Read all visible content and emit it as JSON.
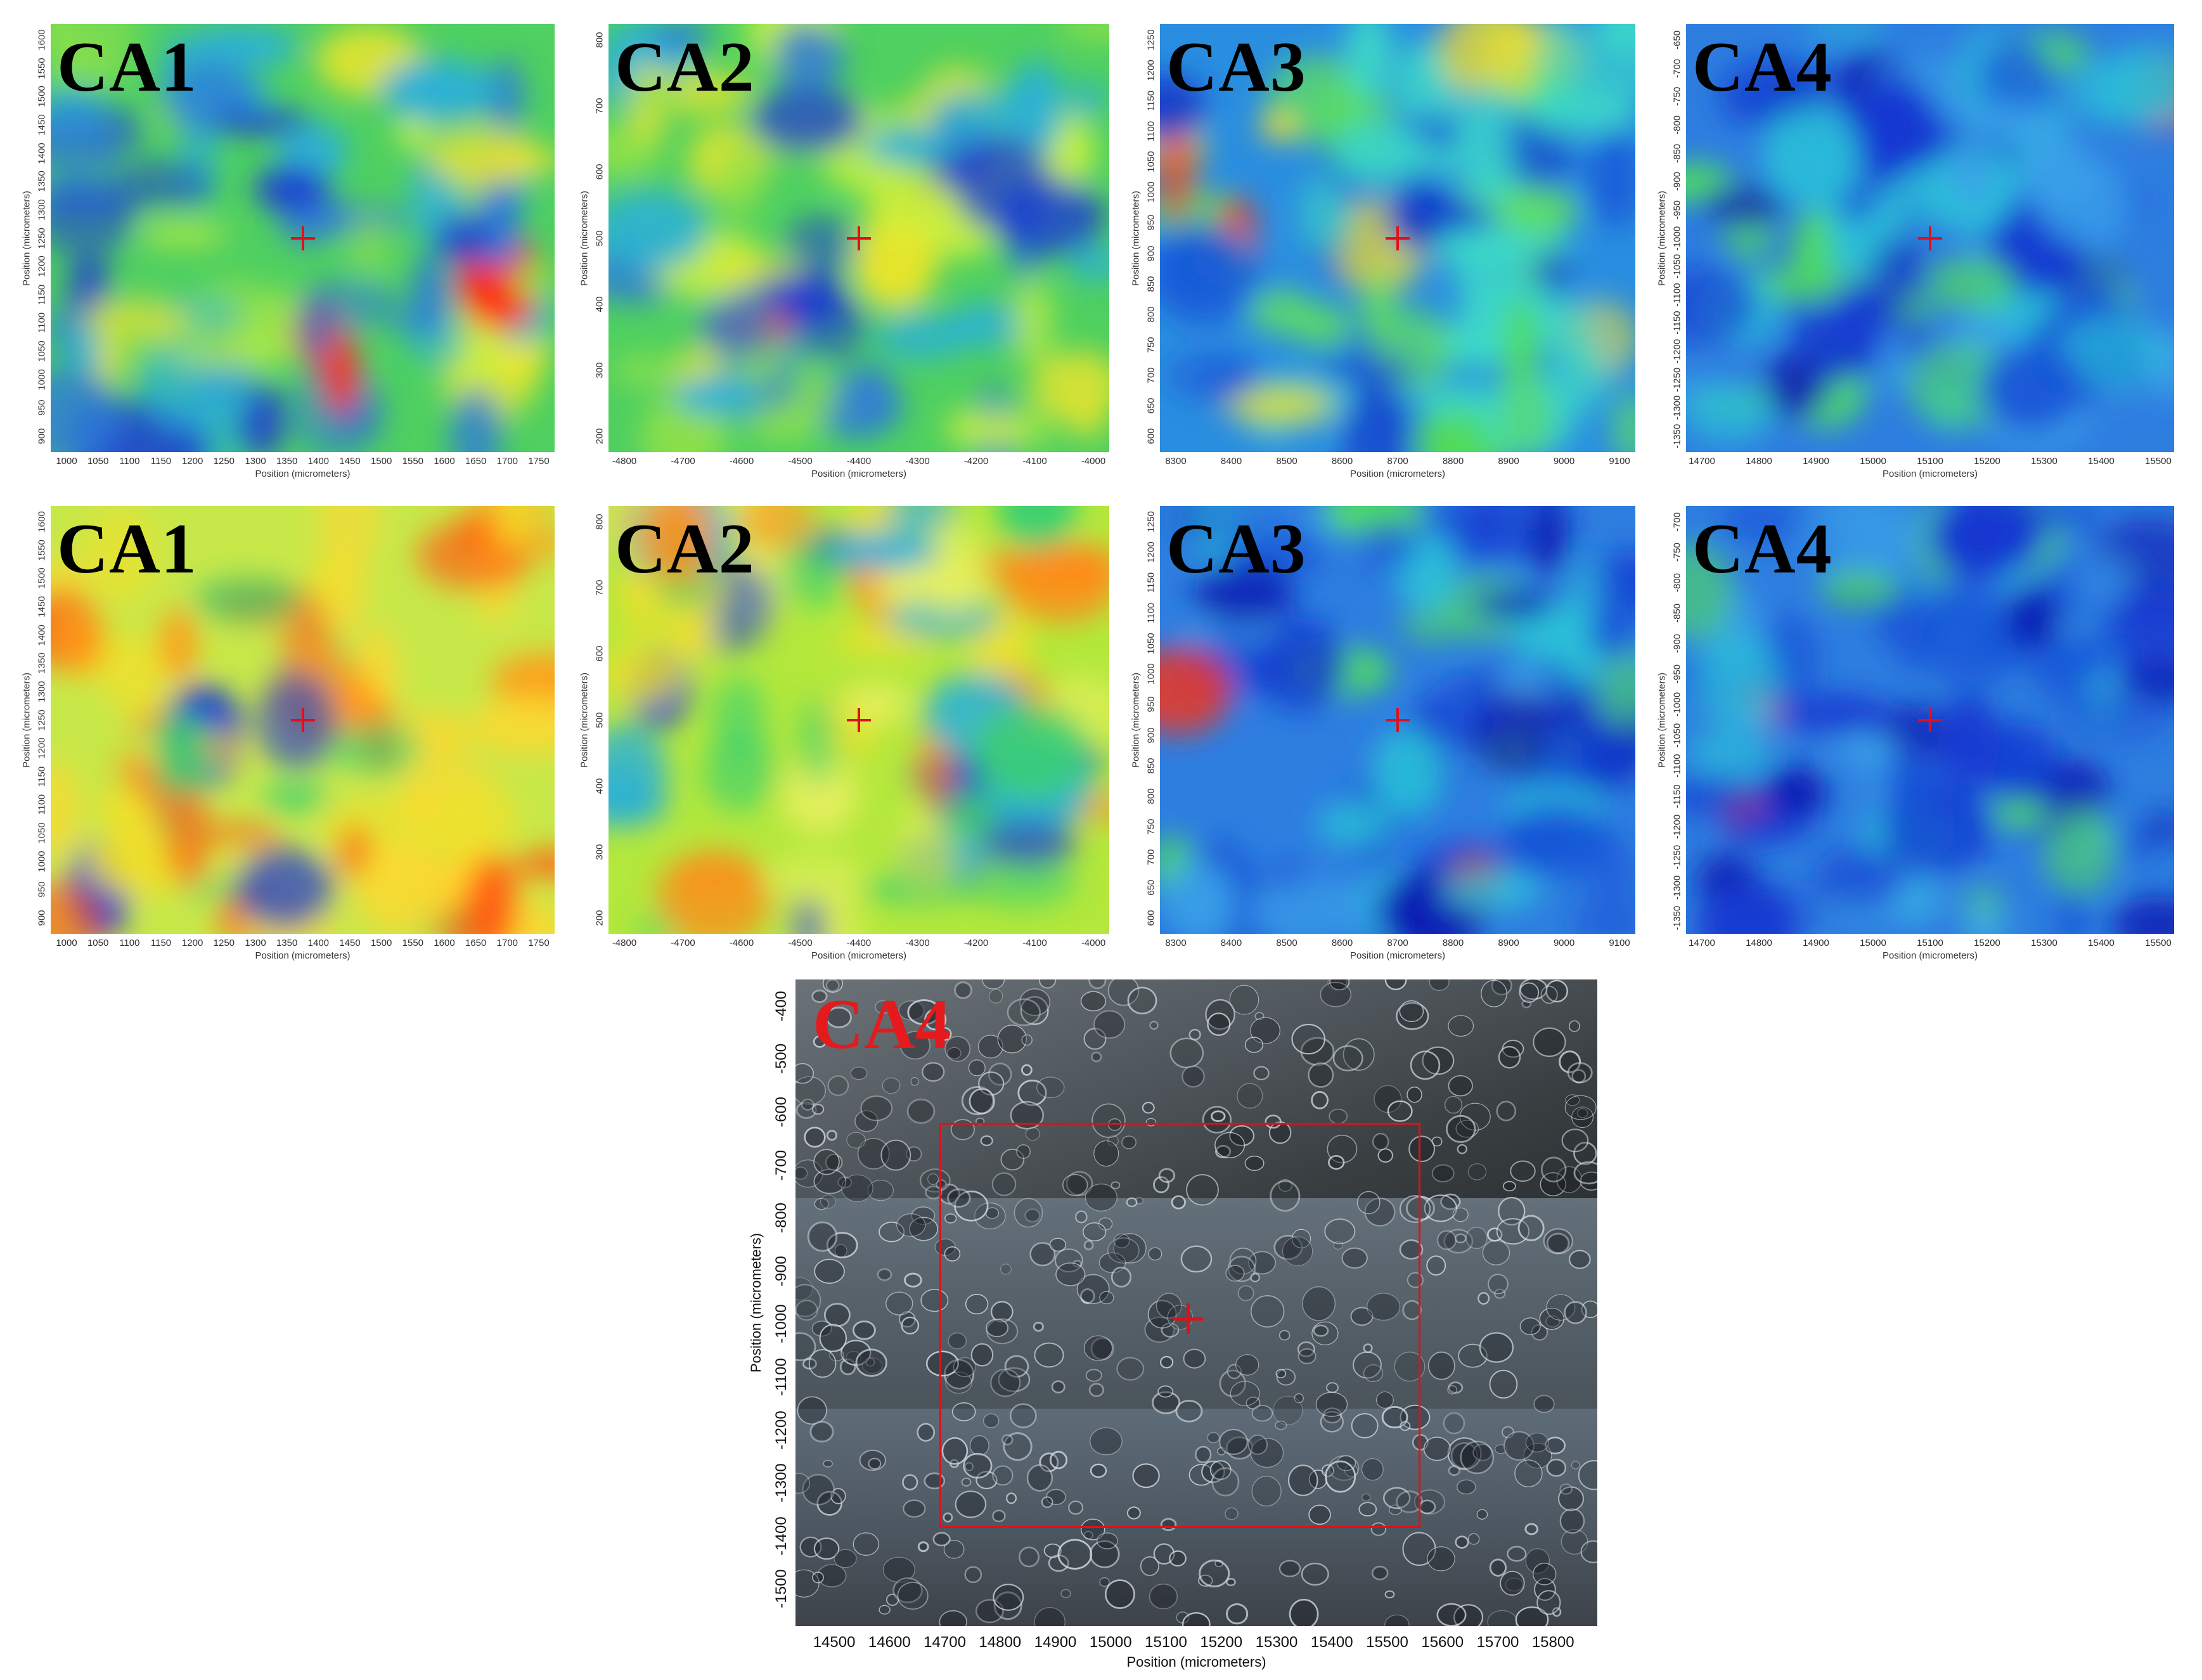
{
  "panels": [
    {
      "id": "ca1-top",
      "label": "CA1",
      "x_ticks": [
        "1000",
        "1050",
        "1100",
        "1150",
        "1200",
        "1250",
        "1300",
        "1350",
        "1400",
        "1450",
        "1500",
        "1550",
        "1600",
        "1650",
        "1700",
        "1750"
      ],
      "y_ticks": [
        "900",
        "950",
        "1000",
        "1050",
        "1100",
        "1150",
        "1200",
        "1250",
        "1300",
        "1350",
        "1400",
        "1450",
        "1500",
        "1550",
        "1600"
      ],
      "x_label": "Position (micrometers)",
      "y_label": "Position (micrometers)",
      "palette": "green",
      "seed": 11
    },
    {
      "id": "ca2-top",
      "label": "CA2",
      "x_ticks": [
        "-4800",
        "-4700",
        "-4600",
        "-4500",
        "-4400",
        "-4300",
        "-4200",
        "-4100",
        "-4000"
      ],
      "y_ticks": [
        "200",
        "300",
        "400",
        "500",
        "600",
        "700",
        "800"
      ],
      "x_label": "Position (micrometers)",
      "y_label": "Position (micrometers)",
      "palette": "green",
      "seed": 23
    },
    {
      "id": "ca3-top",
      "label": "CA3",
      "x_ticks": [
        "8300",
        "8400",
        "8500",
        "8600",
        "8700",
        "8800",
        "8900",
        "9000",
        "9100"
      ],
      "y_ticks": [
        "600",
        "650",
        "700",
        "750",
        "800",
        "850",
        "900",
        "950",
        "1000",
        "1050",
        "1100",
        "1150",
        "1200",
        "1250"
      ],
      "x_label": "Position (micrometers)",
      "y_label": "Position (micrometers)",
      "palette": "blue",
      "seed": 37
    },
    {
      "id": "ca4-top",
      "label": "CA4",
      "x_ticks": [
        "14700",
        "14800",
        "14900",
        "15000",
        "15100",
        "15200",
        "15300",
        "15400",
        "15500"
      ],
      "y_ticks": [
        "-1350",
        "-1300",
        "-1250",
        "-1200",
        "-1150",
        "-1100",
        "-1050",
        "-1000",
        "-950",
        "-900",
        "-850",
        "-800",
        "-750",
        "-700",
        "-650"
      ],
      "x_label": "Position (micrometers)",
      "y_label": "Position (micrometers)",
      "palette": "deepblue",
      "seed": 41
    },
    {
      "id": "ca1-bottom",
      "label": "CA1",
      "x_ticks": [
        "1000",
        "1050",
        "1100",
        "1150",
        "1200",
        "1250",
        "1300",
        "1350",
        "1400",
        "1450",
        "1500",
        "1550",
        "1600",
        "1650",
        "1700",
        "1750"
      ],
      "y_ticks": [
        "900",
        "950",
        "1000",
        "1050",
        "1100",
        "1150",
        "1200",
        "1250",
        "1300",
        "1350",
        "1400",
        "1450",
        "1500",
        "1550",
        "1600"
      ],
      "x_label": "Position (micrometers)",
      "y_label": "Position (micrometers)",
      "palette": "warm",
      "seed": 53
    },
    {
      "id": "ca2-bottom",
      "label": "CA2",
      "x_ticks": [
        "-4800",
        "-4700",
        "-4600",
        "-4500",
        "-4400",
        "-4300",
        "-4200",
        "-4100",
        "-4000"
      ],
      "y_ticks": [
        "200",
        "300",
        "400",
        "500",
        "600",
        "700",
        "800"
      ],
      "x_label": "Position (micrometers)",
      "y_label": "Position (micrometers)",
      "palette": "yellow",
      "seed": 67
    },
    {
      "id": "ca3-bottom",
      "label": "CA3",
      "x_ticks": [
        "8300",
        "8400",
        "8500",
        "8600",
        "8700",
        "8800",
        "8900",
        "9000",
        "9100"
      ],
      "y_ticks": [
        "600",
        "650",
        "700",
        "750",
        "800",
        "850",
        "900",
        "950",
        "1000",
        "1050",
        "1100",
        "1150",
        "1200",
        "1250"
      ],
      "x_label": "Position (micrometers)",
      "y_label": "Position (micrometers)",
      "palette": "deepblue",
      "seed": 71
    },
    {
      "id": "ca4-bottom",
      "label": "CA4",
      "x_ticks": [
        "14700",
        "14800",
        "14900",
        "15000",
        "15100",
        "15200",
        "15300",
        "15400",
        "15500"
      ],
      "y_ticks": [
        "-1350",
        "-1300",
        "-1250",
        "-1200",
        "-1150",
        "-1100",
        "-1050",
        "-1000",
        "-950",
        "-900",
        "-850",
        "-800",
        "-750",
        "-700"
      ],
      "x_label": "Position (micrometers)",
      "y_label": "Position (micrometers)",
      "palette": "deepblue",
      "seed": 83
    }
  ],
  "photo": {
    "label": "CA4",
    "x_ticks": [
      "14500",
      "14600",
      "14700",
      "14800",
      "14900",
      "15000",
      "15100",
      "15200",
      "15300",
      "15400",
      "15500",
      "15600",
      "15700",
      "15800"
    ],
    "y_ticks": [
      "-400",
      "-500",
      "-600",
      "-700",
      "-800",
      "-900",
      "-1000",
      "-1100",
      "-1200",
      "-1300",
      "-1400",
      "-1500"
    ],
    "x_label": "Position (micrometers)",
    "y_label": "Position (micrometers)",
    "roi": {
      "x_min": 14690,
      "x_max": 15560,
      "y_min": -1385,
      "y_max": -620
    },
    "marker": {
      "x": 15140,
      "y": -990
    }
  },
  "colors": {
    "marker": "#e0101a",
    "photo_label": "#e41a1c"
  }
}
